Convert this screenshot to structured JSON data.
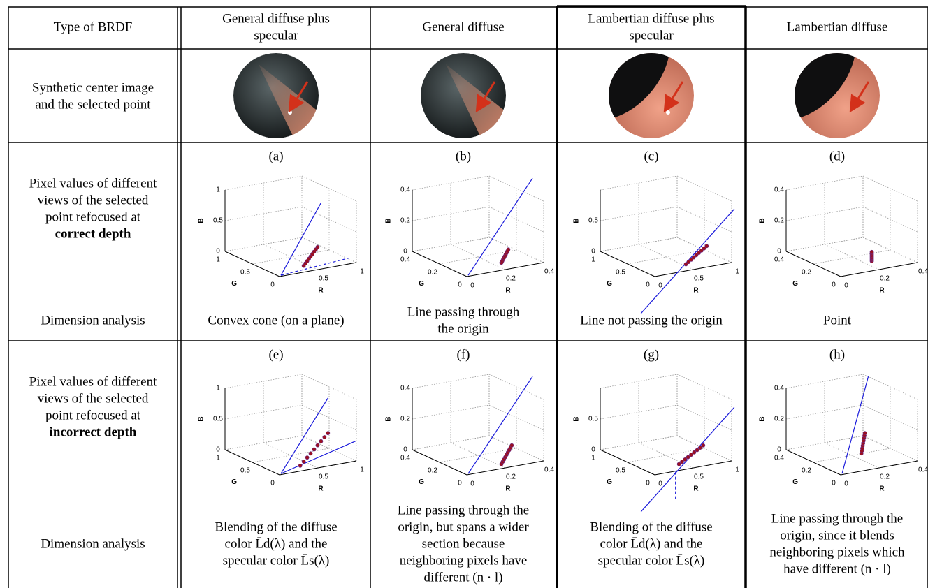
{
  "header": [
    [
      "Type of BRDF"
    ],
    [
      "General diffuse plus",
      "specular"
    ],
    [
      "General diffuse"
    ],
    [
      "Lambertian diffuse plus",
      "specular"
    ],
    [
      "Lambertian diffuse"
    ]
  ],
  "axis_names": [
    "B",
    "G",
    "R"
  ],
  "rows": [
    {
      "label": [
        "Synthetic center image",
        "and the selected point"
      ]
    },
    {
      "label": [
        "Pixel values of different",
        "views of the selected",
        "point refocused at"
      ],
      "emphasis": "correct depth",
      "plots": [
        {
          "tag": "(a)",
          "b": [
            "1",
            "0.5",
            "0"
          ],
          "g": [
            "1",
            "0.5",
            "0"
          ],
          "r": [
            "0.5",
            "1"
          ]
        },
        {
          "tag": "(b)",
          "b": [
            "0.4",
            "0.2",
            "0"
          ],
          "g": [
            "0.4",
            "0.2",
            "0"
          ],
          "r": [
            "0",
            "0.2",
            "0.4"
          ]
        },
        {
          "tag": "(c)",
          "b": [
            "0.5",
            "0"
          ],
          "g": [
            "1",
            "0.5",
            "0"
          ],
          "r": [
            "0",
            "0.5",
            "1"
          ]
        },
        {
          "tag": "(d)",
          "b": [
            "0.4",
            "0.2",
            "0"
          ],
          "g": [
            "0.4",
            "0.2",
            "0"
          ],
          "r": [
            "0",
            "0.2",
            "0.4"
          ]
        }
      ],
      "analysis_label": "Dimension analysis",
      "analyses": [
        [
          "Convex cone (on a plane)"
        ],
        [
          "Line passing through",
          "the origin"
        ],
        [
          "Line not passing the origin"
        ],
        [
          "Point"
        ]
      ]
    },
    {
      "label": [
        "Pixel values of different",
        "views of the selected",
        "point refocused at"
      ],
      "emphasis": "incorrect depth",
      "plots": [
        {
          "tag": "(e)",
          "b": [
            "1",
            "0.5",
            "0"
          ],
          "g": [
            "1",
            "0.5",
            "0"
          ],
          "r": [
            "0.5",
            "1"
          ]
        },
        {
          "tag": "(f)",
          "b": [
            "0.4",
            "0.2",
            "0"
          ],
          "g": [
            "0.4",
            "0.2",
            "0"
          ],
          "r": [
            "0",
            "0.2",
            "0.4"
          ]
        },
        {
          "tag": "(g)",
          "b": [
            "0.5",
            "0"
          ],
          "g": [
            "1",
            "0.5",
            "0"
          ],
          "r": [
            "0",
            "0.5",
            "1"
          ]
        },
        {
          "tag": "(h)",
          "b": [
            "0.4",
            "0.2",
            "0"
          ],
          "g": [
            "0.4",
            "0.2",
            "0"
          ],
          "r": [
            "0",
            "0.2",
            "0.4"
          ]
        }
      ],
      "analysis_label": "Dimension analysis",
      "analyses": [
        [
          "Blending of the diffuse",
          "color L̄d(λ) and the",
          "specular color L̄s(λ)"
        ],
        [
          "Line passing through the",
          "origin, but spans a wider",
          "section because",
          "neighboring pixels have",
          "different (n · l)"
        ],
        [
          "Blending of the diffuse",
          "color L̄d(λ) and the",
          "specular color L̄s(λ)"
        ],
        [
          "Line passing through the",
          "origin, since it blends",
          "neighboring pixels which",
          "have different (n · l)"
        ]
      ]
    }
  ]
}
